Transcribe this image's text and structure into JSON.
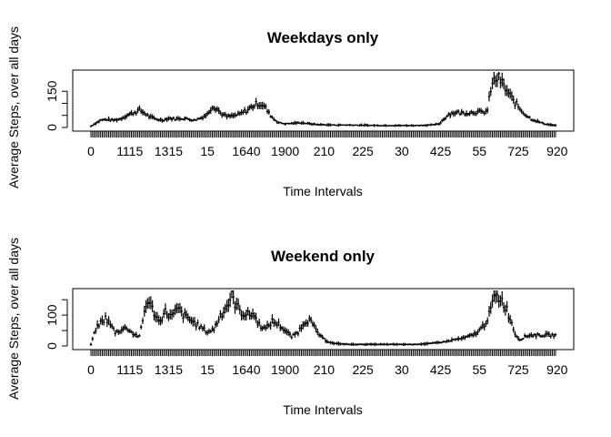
{
  "chart_data": [
    {
      "type": "box",
      "title": "Weekdays only",
      "xlabel": "Time Intervals",
      "ylabel": "Average Steps, over all days",
      "ylim": [
        0,
        230
      ],
      "yticks": [
        0,
        50,
        100,
        150
      ],
      "ytick_labels": [
        "0",
        "",
        "",
        "150"
      ],
      "xtick_labels": [
        "0",
        "1115",
        "1315",
        "15",
        "1640",
        "1900",
        "210",
        "225",
        "30",
        "425",
        "55",
        "725",
        "920"
      ],
      "categories_count": 288,
      "profile": [
        [
          0,
          5
        ],
        [
          3,
          18
        ],
        [
          6,
          30
        ],
        [
          10,
          33
        ],
        [
          14,
          30
        ],
        [
          18,
          35
        ],
        [
          22,
          50
        ],
        [
          26,
          60
        ],
        [
          30,
          72
        ],
        [
          33,
          60
        ],
        [
          36,
          45
        ],
        [
          40,
          35
        ],
        [
          44,
          30
        ],
        [
          48,
          38
        ],
        [
          52,
          35
        ],
        [
          56,
          38
        ],
        [
          60,
          35
        ],
        [
          64,
          30
        ],
        [
          68,
          40
        ],
        [
          72,
          55
        ],
        [
          75,
          90
        ],
        [
          78,
          78
        ],
        [
          80,
          60
        ],
        [
          84,
          45
        ],
        [
          88,
          48
        ],
        [
          92,
          55
        ],
        [
          96,
          70
        ],
        [
          100,
          88
        ],
        [
          103,
          100
        ],
        [
          106,
          95
        ],
        [
          108,
          80
        ],
        [
          110,
          58
        ],
        [
          113,
          35
        ],
        [
          116,
          20
        ],
        [
          120,
          15
        ],
        [
          124,
          17
        ],
        [
          130,
          20
        ],
        [
          134,
          16
        ],
        [
          140,
          12
        ],
        [
          150,
          10
        ],
        [
          160,
          10
        ],
        [
          170,
          9
        ],
        [
          180,
          8
        ],
        [
          190,
          8
        ],
        [
          200,
          8
        ],
        [
          210,
          10
        ],
        [
          215,
          14
        ],
        [
          218,
          35
        ],
        [
          221,
          55
        ],
        [
          225,
          62
        ],
        [
          230,
          60
        ],
        [
          234,
          62
        ],
        [
          238,
          65
        ],
        [
          242,
          62
        ],
        [
          245,
          70
        ],
        [
          247,
          160
        ],
        [
          249,
          190
        ],
        [
          251,
          205
        ],
        [
          253,
          195
        ],
        [
          255,
          170
        ],
        [
          258,
          140
        ],
        [
          261,
          110
        ],
        [
          263,
          95
        ],
        [
          266,
          70
        ],
        [
          269,
          50
        ],
        [
          272,
          35
        ],
        [
          276,
          25
        ],
        [
          280,
          15
        ],
        [
          287,
          8
        ]
      ]
    },
    {
      "type": "box",
      "title": "Weekend only",
      "xlabel": "Time Intervals",
      "ylabel": "Average Steps, over all days",
      "ylim": [
        0,
        180
      ],
      "yticks": [
        0,
        50,
        100,
        150
      ],
      "ytick_labels": [
        "0",
        "",
        "100",
        ""
      ],
      "xtick_labels": [
        "0",
        "1115",
        "1315",
        "15",
        "1640",
        "1900",
        "210",
        "225",
        "30",
        "425",
        "55",
        "725",
        "920"
      ],
      "categories_count": 288,
      "profile": [
        [
          0,
          5
        ],
        [
          3,
          55
        ],
        [
          6,
          75
        ],
        [
          9,
          90
        ],
        [
          12,
          70
        ],
        [
          15,
          45
        ],
        [
          18,
          50
        ],
        [
          22,
          60
        ],
        [
          26,
          40
        ],
        [
          30,
          30
        ],
        [
          33,
          110
        ],
        [
          35,
          150
        ],
        [
          38,
          120
        ],
        [
          42,
          80
        ],
        [
          46,
          110
        ],
        [
          50,
          95
        ],
        [
          54,
          120
        ],
        [
          57,
          100
        ],
        [
          60,
          90
        ],
        [
          64,
          75
        ],
        [
          68,
          60
        ],
        [
          72,
          45
        ],
        [
          76,
          55
        ],
        [
          80,
          100
        ],
        [
          84,
          130
        ],
        [
          87,
          160
        ],
        [
          90,
          130
        ],
        [
          93,
          110
        ],
        [
          96,
          100
        ],
        [
          100,
          105
        ],
        [
          104,
          70
        ],
        [
          108,
          55
        ],
        [
          112,
          80
        ],
        [
          116,
          70
        ],
        [
          120,
          50
        ],
        [
          124,
          30
        ],
        [
          128,
          45
        ],
        [
          132,
          80
        ],
        [
          135,
          85
        ],
        [
          138,
          60
        ],
        [
          142,
          30
        ],
        [
          146,
          15
        ],
        [
          150,
          8
        ],
        [
          160,
          5
        ],
        [
          170,
          5
        ],
        [
          180,
          5
        ],
        [
          190,
          5
        ],
        [
          200,
          5
        ],
        [
          210,
          8
        ],
        [
          216,
          12
        ],
        [
          220,
          15
        ],
        [
          224,
          20
        ],
        [
          230,
          25
        ],
        [
          236,
          35
        ],
        [
          240,
          50
        ],
        [
          243,
          70
        ],
        [
          246,
          100
        ],
        [
          248,
          140
        ],
        [
          250,
          160
        ],
        [
          253,
          155
        ],
        [
          256,
          130
        ],
        [
          259,
          90
        ],
        [
          262,
          40
        ],
        [
          265,
          20
        ],
        [
          268,
          30
        ],
        [
          271,
          35
        ]
      ]
    }
  ]
}
